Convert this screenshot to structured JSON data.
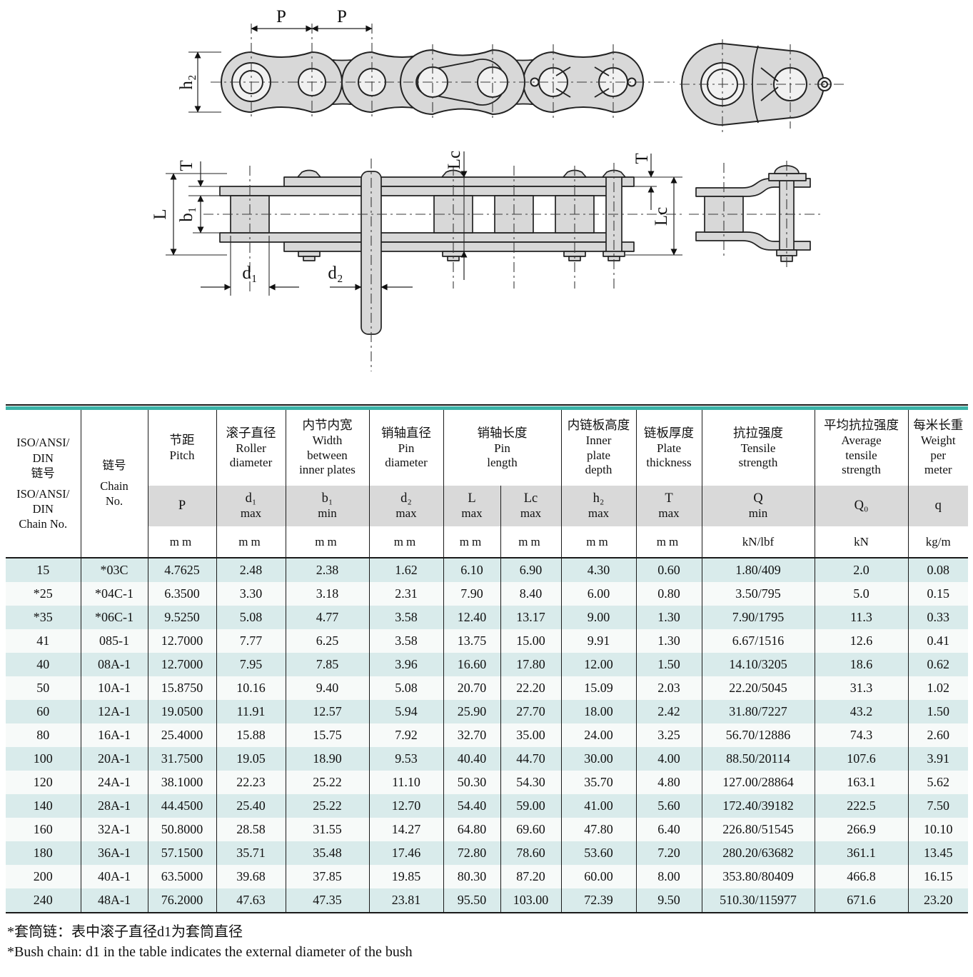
{
  "colors": {
    "accent_teal": "#3bb3a8",
    "row_alt": "#d9ebeb",
    "band_gray": "#d9d9d9",
    "line_dark": "#1a1a1a"
  },
  "diagram": {
    "labels": {
      "pitch_1": "P",
      "pitch_2": "P",
      "h2": "h₂",
      "t_left": "T",
      "l": "L",
      "b1": "b₁",
      "d1": "d₁",
      "d2": "d₂",
      "lc_mid": "Lc",
      "t_right": "T",
      "lc_right": "Lc"
    }
  },
  "table": {
    "header": {
      "iso_chain_no": {
        "zh": "ISO/ANSI/\nDIN\n链号",
        "en": "ISO/ANSI/\nDIN\nChain No."
      },
      "chain_no": {
        "zh": "链号",
        "en": "Chain\nNo."
      },
      "columns": [
        {
          "zh": "节距",
          "en": "Pitch",
          "sym": "P",
          "qual": "",
          "unit": "mm"
        },
        {
          "zh": "滚子直径",
          "en": "Roller\ndiameter",
          "sym": "d₁",
          "qual": "max",
          "unit": "mm"
        },
        {
          "zh": "内节内宽",
          "en": "Width\nbetween\ninner plates",
          "sym": "b₁",
          "qual": "min",
          "unit": "mm"
        },
        {
          "zh": "销轴直径",
          "en": "Pin\ndiameter",
          "sym": "d₂",
          "qual": "max",
          "unit": "mm"
        },
        {
          "zh": "销轴长度",
          "en": "Pin\nlength",
          "sym": "L",
          "qual": "max",
          "unit": "mm"
        },
        {
          "zh": "",
          "en": "",
          "sym": "Lc",
          "qual": "max",
          "unit": "mm"
        },
        {
          "zh": "内链板高度",
          "en": "Inner\nplate\ndepth",
          "sym": "h₂",
          "qual": "max",
          "unit": "mm"
        },
        {
          "zh": "链板厚度",
          "en": "Plate\nthickness",
          "sym": "T",
          "qual": "max",
          "unit": "mm"
        },
        {
          "zh": "抗拉强度",
          "en": "Tensile\nstrength",
          "sym": "Q",
          "qual": "min",
          "unit": "kN/lbf"
        },
        {
          "zh": "平均抗拉强度",
          "en": "Average\ntensile\nstrength",
          "sym": "Q₀",
          "qual": "",
          "unit": "kN"
        },
        {
          "zh": "每米长重",
          "en": "Weight\nper\nmeter",
          "sym": "q",
          "qual": "",
          "unit": "kg/m"
        }
      ]
    },
    "rows": [
      [
        "15",
        "*03C",
        "4.7625",
        "2.48",
        "2.38",
        "1.62",
        "6.10",
        "6.90",
        "4.30",
        "0.60",
        "1.80/409",
        "2.0",
        "0.08"
      ],
      [
        "*25",
        "*04C-1",
        "6.3500",
        "3.30",
        "3.18",
        "2.31",
        "7.90",
        "8.40",
        "6.00",
        "0.80",
        "3.50/795",
        "5.0",
        "0.15"
      ],
      [
        "*35",
        "*06C-1",
        "9.5250",
        "5.08",
        "4.77",
        "3.58",
        "12.40",
        "13.17",
        "9.00",
        "1.30",
        "7.90/1795",
        "11.3",
        "0.33"
      ],
      [
        "41",
        "085-1",
        "12.7000",
        "7.77",
        "6.25",
        "3.58",
        "13.75",
        "15.00",
        "9.91",
        "1.30",
        "6.67/1516",
        "12.6",
        "0.41"
      ],
      [
        "40",
        "08A-1",
        "12.7000",
        "7.95",
        "7.85",
        "3.96",
        "16.60",
        "17.80",
        "12.00",
        "1.50",
        "14.10/3205",
        "18.6",
        "0.62"
      ],
      [
        "50",
        "10A-1",
        "15.8750",
        "10.16",
        "9.40",
        "5.08",
        "20.70",
        "22.20",
        "15.09",
        "2.03",
        "22.20/5045",
        "31.3",
        "1.02"
      ],
      [
        "60",
        "12A-1",
        "19.0500",
        "11.91",
        "12.57",
        "5.94",
        "25.90",
        "27.70",
        "18.00",
        "2.42",
        "31.80/7227",
        "43.2",
        "1.50"
      ],
      [
        "80",
        "16A-1",
        "25.4000",
        "15.88",
        "15.75",
        "7.92",
        "32.70",
        "35.00",
        "24.00",
        "3.25",
        "56.70/12886",
        "74.3",
        "2.60"
      ],
      [
        "100",
        "20A-1",
        "31.7500",
        "19.05",
        "18.90",
        "9.53",
        "40.40",
        "44.70",
        "30.00",
        "4.00",
        "88.50/20114",
        "107.6",
        "3.91"
      ],
      [
        "120",
        "24A-1",
        "38.1000",
        "22.23",
        "25.22",
        "11.10",
        "50.30",
        "54.30",
        "35.70",
        "4.80",
        "127.00/28864",
        "163.1",
        "5.62"
      ],
      [
        "140",
        "28A-1",
        "44.4500",
        "25.40",
        "25.22",
        "12.70",
        "54.40",
        "59.00",
        "41.00",
        "5.60",
        "172.40/39182",
        "222.5",
        "7.50"
      ],
      [
        "160",
        "32A-1",
        "50.8000",
        "28.58",
        "31.55",
        "14.27",
        "64.80",
        "69.60",
        "47.80",
        "6.40",
        "226.80/51545",
        "266.9",
        "10.10"
      ],
      [
        "180",
        "36A-1",
        "57.1500",
        "35.71",
        "35.48",
        "17.46",
        "72.80",
        "78.60",
        "53.60",
        "7.20",
        "280.20/63682",
        "361.1",
        "13.45"
      ],
      [
        "200",
        "40A-1",
        "63.5000",
        "39.68",
        "37.85",
        "19.85",
        "80.30",
        "87.20",
        "60.00",
        "8.00",
        "353.80/80409",
        "466.8",
        "16.15"
      ],
      [
        "240",
        "48A-1",
        "76.2000",
        "47.63",
        "47.35",
        "23.81",
        "95.50",
        "103.00",
        "72.39",
        "9.50",
        "510.30/115977",
        "671.6",
        "23.20"
      ]
    ]
  },
  "footnotes": {
    "zh": "*套筒链：表中滚子直径d1为套筒直径",
    "en": "*Bush chain: d1 in the table indicates the external diameter of the bush"
  }
}
